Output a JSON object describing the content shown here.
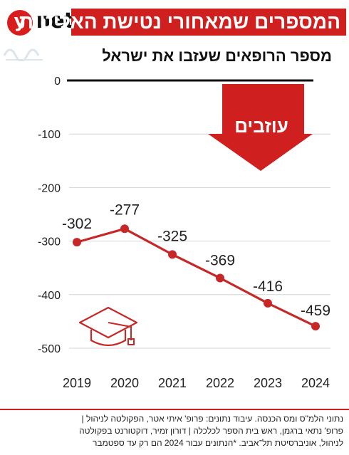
{
  "brand": {
    "logo_letter": "y",
    "logo_text": "net"
  },
  "header": {
    "title": "המספרים שמאחורי נטישת האליטות"
  },
  "subtitle": "מספר הרופאים שעזבו את ישראל",
  "arrow_label": "עוזבים",
  "colors": {
    "accent": "#d01f1f",
    "line": "#c62828",
    "highlight_label": "#c62828",
    "zero_line": "#111111"
  },
  "chart_data": {
    "type": "line",
    "title": "מספר הרופאים שעזבו את ישראל",
    "xlabel": "",
    "ylabel": "",
    "categories": [
      "2019",
      "2020",
      "2021",
      "2022",
      "2023",
      "2024"
    ],
    "series": [
      {
        "values": [
          -302,
          -277,
          -325,
          -369,
          -416,
          -459
        ]
      }
    ],
    "data_labels": [
      "-302",
      "-277",
      "-325",
      "-369",
      "-416",
      "-459"
    ],
    "highlighted_index": 5,
    "yticks": [
      0,
      -100,
      -200,
      -300,
      -400,
      -500
    ],
    "ytick_labels": [
      "0",
      "-100",
      "-200",
      "-300",
      "-400",
      "-500"
    ],
    "ylim": [
      -500,
      0
    ],
    "grid": "horizontal",
    "decoration_icon": "graduation-cap-icon"
  },
  "footer": {
    "lines": [
      "נתוני הלמ\"ס ומס הכנסה. עיבוד נתונים: פרופ' איתי אטר, הפקולטה לניהול |",
      "פרופ' נתאי ברגמן, ראש בית הספר לכלכלה | דורון זמיר, דוקטורנט בפקולטה",
      "לניהול, אוניברסיטת תל־אביב. *הנתונים עבור 2024 הם רק עד ספטמבר"
    ]
  }
}
